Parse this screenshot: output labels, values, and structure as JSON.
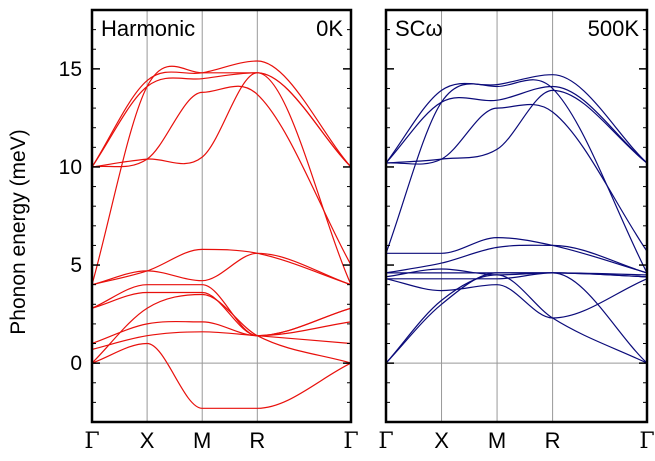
{
  "chart_data": [
    {
      "type": "line",
      "title": "",
      "panel_label": "Harmonic",
      "temperature": "0K",
      "ylabel": "Phonon energy (meV)",
      "xlabel": "",
      "ylim": [
        -3,
        18
      ],
      "yticks": [
        0,
        5,
        10,
        15
      ],
      "path_points": [
        {
          "label": "Γ",
          "x": 0
        },
        {
          "label": "X",
          "x": 1
        },
        {
          "label": "M",
          "x": 2
        },
        {
          "label": "R",
          "x": 3
        },
        {
          "label": "Γ",
          "x": 4.7
        }
      ],
      "line_color": "#e8100c",
      "grid": "vertical lines at high-symmetry points; horizontal line at 0",
      "series": [
        {
          "x": [
            0,
            1,
            2,
            3,
            4.7
          ],
          "y": [
            10.0,
            14.4,
            14.8,
            15.4,
            10.0
          ]
        },
        {
          "x": [
            0,
            1,
            2,
            3,
            4.7
          ],
          "y": [
            10.0,
            14.1,
            14.5,
            14.8,
            10.0
          ]
        },
        {
          "x": [
            0,
            1,
            2,
            3,
            4.7
          ],
          "y": [
            10.0,
            10.4,
            10.5,
            14.8,
            10.0
          ]
        },
        {
          "x": [
            0,
            1,
            2,
            3,
            4.7
          ],
          "y": [
            10.0,
            10.4,
            13.8,
            13.7,
            5.0
          ]
        },
        {
          "x": [
            0,
            1,
            2,
            3,
            4.7
          ],
          "y": [
            4.0,
            14.1,
            14.8,
            14.8,
            4.0
          ]
        },
        {
          "x": [
            0,
            1,
            2,
            3,
            4.7
          ],
          "y": [
            4.0,
            4.7,
            5.8,
            5.6,
            4.0
          ]
        },
        {
          "x": [
            0,
            1,
            2,
            3,
            4.7
          ],
          "y": [
            4.0,
            4.7,
            4.2,
            5.6,
            4.0
          ]
        },
        {
          "x": [
            0,
            1,
            2,
            3,
            4.7
          ],
          "y": [
            2.8,
            4.0,
            4.0,
            1.4,
            2.8
          ]
        },
        {
          "x": [
            0,
            1,
            2,
            3,
            4.7
          ],
          "y": [
            2.8,
            3.6,
            3.6,
            1.4,
            2.8
          ]
        },
        {
          "x": [
            0,
            1,
            2,
            3,
            4.7
          ],
          "y": [
            1.0,
            2.0,
            2.1,
            1.4,
            2.1
          ]
        },
        {
          "x": [
            0,
            1,
            2,
            3,
            4.7
          ],
          "y": [
            0.7,
            1.4,
            1.6,
            1.4,
            1.0
          ]
        },
        {
          "x": [
            0,
            1,
            2,
            3,
            4.7
          ],
          "y": [
            0.0,
            2.8,
            3.5,
            1.4,
            0.0
          ]
        },
        {
          "x": [
            0,
            1,
            2,
            3,
            4.7
          ],
          "y": [
            0.0,
            1.0,
            -2.3,
            -2.3,
            0.0
          ]
        }
      ]
    },
    {
      "type": "line",
      "title": "",
      "panel_label": "SCω",
      "temperature": "500K",
      "ylabel": "",
      "xlabel": "",
      "ylim": [
        -3,
        18
      ],
      "yticks": [
        0,
        5,
        10,
        15
      ],
      "path_points": [
        {
          "label": "Γ",
          "x": 0
        },
        {
          "label": "X",
          "x": 1
        },
        {
          "label": "M",
          "x": 2
        },
        {
          "label": "R",
          "x": 3
        },
        {
          "label": "Γ",
          "x": 4.7
        }
      ],
      "line_color": "#0b0b7a",
      "grid": "vertical lines at high-symmetry points; horizontal line at 0",
      "series": [
        {
          "x": [
            0,
            1,
            2,
            3,
            4.7
          ],
          "y": [
            10.2,
            13.9,
            14.2,
            14.7,
            10.2
          ]
        },
        {
          "x": [
            0,
            1,
            2,
            3,
            4.7
          ],
          "y": [
            10.2,
            13.3,
            13.4,
            14.1,
            10.2
          ]
        },
        {
          "x": [
            0,
            1,
            2,
            3,
            4.7
          ],
          "y": [
            10.2,
            10.4,
            10.9,
            13.9,
            10.2
          ]
        },
        {
          "x": [
            0,
            1,
            2,
            3,
            4.7
          ],
          "y": [
            10.2,
            10.4,
            13.0,
            12.8,
            5.7
          ]
        },
        {
          "x": [
            0,
            1,
            2,
            3,
            4.7
          ],
          "y": [
            5.6,
            13.3,
            14.1,
            14.0,
            4.6
          ]
        },
        {
          "x": [
            0,
            1,
            2,
            3,
            4.7
          ],
          "y": [
            5.6,
            5.6,
            6.4,
            6.0,
            4.6
          ]
        },
        {
          "x": [
            0,
            1,
            2,
            3,
            4.7
          ],
          "y": [
            4.6,
            5.1,
            5.9,
            6.0,
            4.6
          ]
        },
        {
          "x": [
            0,
            1,
            2,
            3,
            4.7
          ],
          "y": [
            4.6,
            4.6,
            4.6,
            4.6,
            4.5
          ]
        },
        {
          "x": [
            0,
            1,
            2,
            3,
            4.7
          ],
          "y": [
            4.4,
            4.8,
            4.5,
            4.6,
            4.4
          ]
        },
        {
          "x": [
            0,
            1,
            2,
            3,
            4.7
          ],
          "y": [
            4.3,
            4.3,
            4.3,
            4.6,
            4.4
          ]
        },
        {
          "x": [
            0,
            1,
            2,
            3,
            4.7
          ],
          "y": [
            4.3,
            3.7,
            4.0,
            2.3,
            4.3
          ]
        },
        {
          "x": [
            0,
            1,
            2,
            3,
            4.7
          ],
          "y": [
            0.0,
            3.2,
            4.5,
            2.3,
            0.0
          ]
        },
        {
          "x": [
            0,
            1,
            2,
            3,
            4.7
          ],
          "y": [
            0.0,
            3.0,
            4.6,
            4.6,
            0.0
          ]
        }
      ]
    }
  ]
}
